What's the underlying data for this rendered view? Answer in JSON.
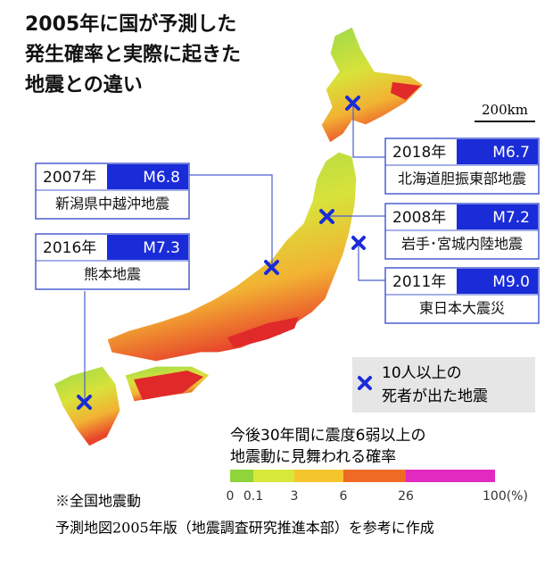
{
  "title": [
    "2005年に国が予測した",
    "発生確率と実際に起きた",
    "地震との違い"
  ],
  "scale": "200km",
  "earthquakes": [
    {
      "year": "2018年",
      "magnitude": "M6.7",
      "name": "北海道胆振東部地震"
    },
    {
      "year": "2007年",
      "magnitude": "M6.8",
      "name": "新潟県中越沖地震"
    },
    {
      "year": "2008年",
      "magnitude": "M7.2",
      "name": "岩手･宮城内陸地震"
    },
    {
      "year": "2016年",
      "magnitude": "M7.3",
      "name": "熊本地震"
    },
    {
      "year": "2011年",
      "magnitude": "M9.0",
      "name": "東日本大震災"
    }
  ],
  "legend": [
    "10人以上の",
    "死者が出た地震"
  ],
  "probability_scale": {
    "caption": [
      "今後30年間に震度6弱以上の",
      "地震動に見舞われる確率"
    ],
    "ticks": [
      "0",
      "0.1",
      "3",
      "6",
      "26",
      "100(%)"
    ]
  },
  "footnote": [
    "※全国地震動",
    "予測地図2005年版（地震調査研究推進本部）を参考に作成"
  ]
}
